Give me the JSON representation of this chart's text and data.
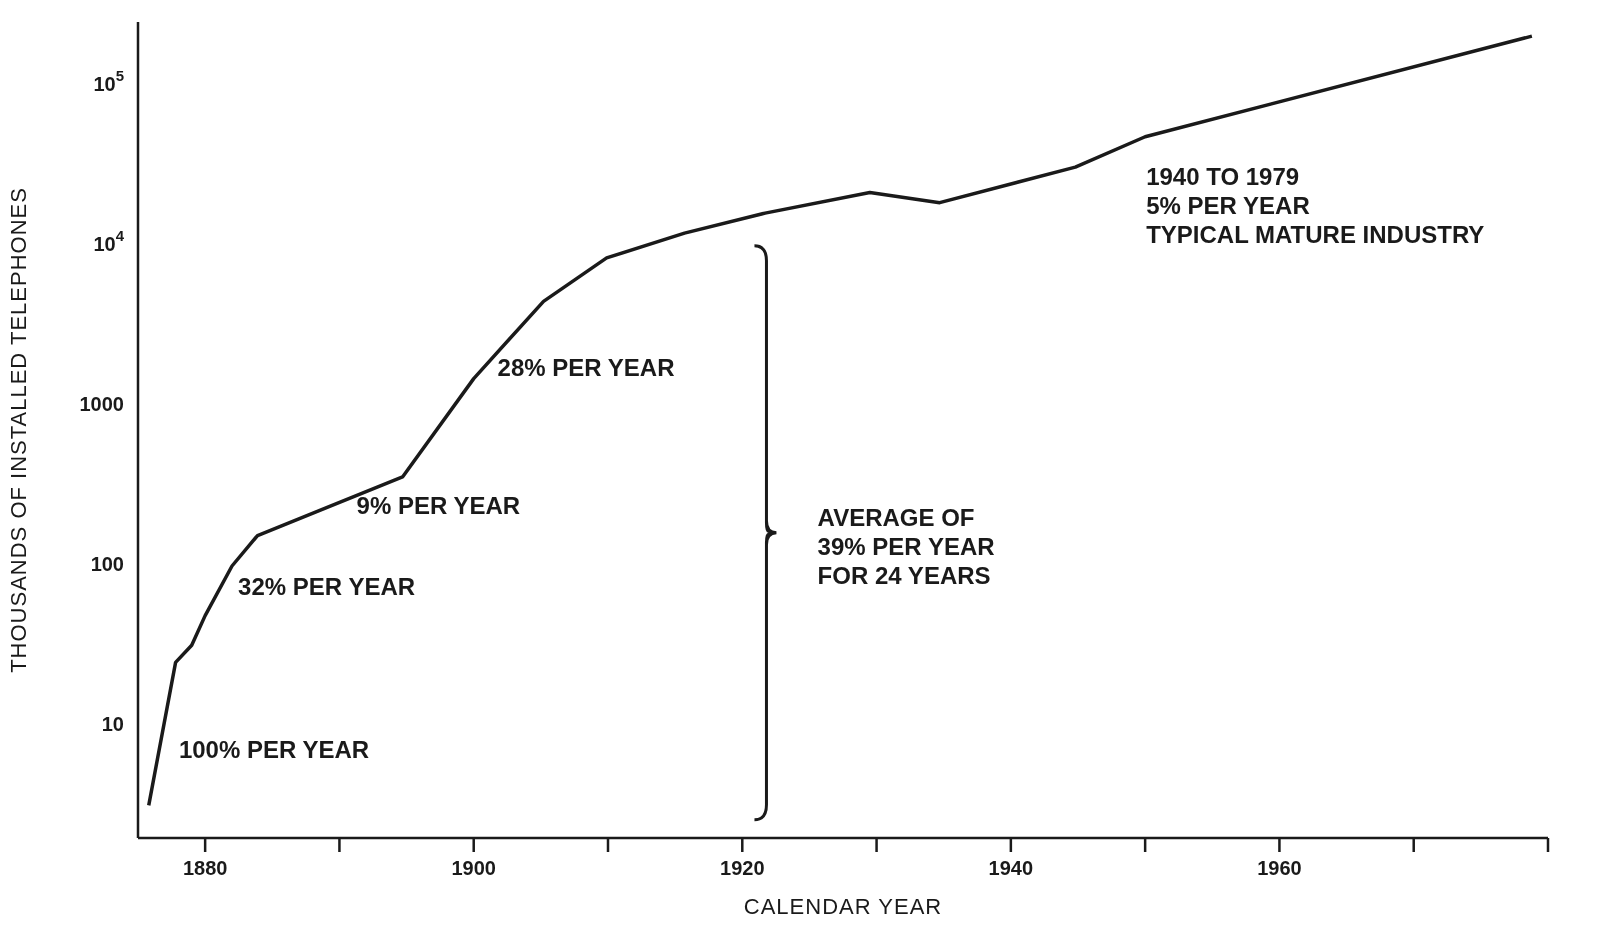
{
  "chart_data": {
    "type": "line",
    "xlabel": "CALENDAR YEAR",
    "ylabel": "THOUSANDS OF INSTALLED TELEPHONES",
    "x": [
      1875.8,
      1877.8,
      1879,
      1880,
      1882,
      1883.9,
      1894.7,
      1900,
      1905.2,
      1909.9,
      1915.7,
      1921.7,
      1929.5,
      1934.7,
      1944.8,
      1950,
      1978.8
    ],
    "series": [
      {
        "color": "#1a1a1a",
        "values": [
          3.2,
          25,
          32,
          49,
          100,
          155,
          360,
          1480,
          4500,
          8400,
          12000,
          16000,
          21500,
          18600,
          31000,
          48000,
          204000
        ]
      }
    ],
    "log": "y",
    "xlim": [
      1875,
      1980
    ],
    "ylim": [
      2,
      250000
    ],
    "xticks": [
      {
        "value": 1880,
        "label": "1880"
      },
      {
        "value": 1890,
        "label": null
      },
      {
        "value": 1900,
        "label": "1900"
      },
      {
        "value": 1910,
        "label": null
      },
      {
        "value": 1920,
        "label": "1920"
      },
      {
        "value": 1930,
        "label": null
      },
      {
        "value": 1940,
        "label": "1940"
      },
      {
        "value": 1950,
        "label": null
      },
      {
        "value": 1960,
        "label": "1960"
      },
      {
        "value": 1970,
        "label": null
      },
      {
        "value": 1980,
        "label": null
      }
    ],
    "yticks": [
      10,
      100,
      1000,
      {
        "value": 10000,
        "label": "10$^{4}$"
      },
      {
        "value": 100000,
        "label": "10$^{5}$"
      }
    ],
    "grid": false,
    "legend": false,
    "marker": "none",
    "line_style": "solid",
    "annotations": [
      "100% PER YEAR",
      "32% PER YEAR",
      "9% PER YEAR",
      "28% PER YEAR",
      "AVERAGE OF\n39% PER YEAR\nFOR 24 YEARS",
      "1940 TO 1979\n5% PER YEAR\nTYPICAL MATURE INDUSTRY"
    ]
  }
}
